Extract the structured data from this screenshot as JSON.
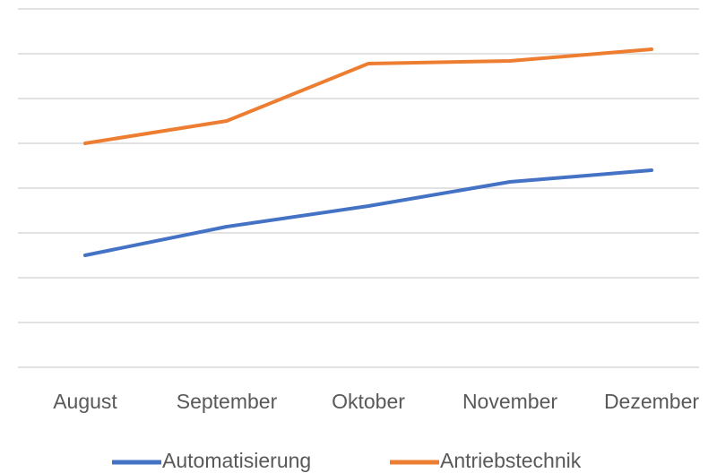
{
  "chart_data": {
    "type": "line",
    "categories": [
      "August",
      "September",
      "Oktober",
      "November",
      "Dezember"
    ],
    "series": [
      {
        "name": "Automatisierung",
        "color": "#4472c4",
        "values": [
          2.5,
          3.14,
          3.6,
          4.14,
          4.4
        ]
      },
      {
        "name": "Antriebstechnik",
        "color": "#ed7d31",
        "values": [
          5.0,
          5.5,
          6.78,
          6.84,
          7.1
        ]
      }
    ],
    "ylim": [
      0,
      8
    ],
    "yticks": [
      0,
      1,
      2,
      3,
      4,
      5,
      6,
      7,
      8
    ],
    "grid": true,
    "legend": "bottom"
  }
}
